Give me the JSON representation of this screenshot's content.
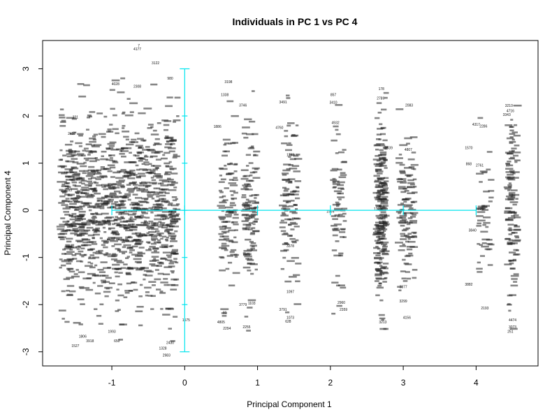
{
  "chart_data": {
    "type": "scatter",
    "title": "Individuals in PC 1 vs PC 4",
    "xlabel": "Principal Component 1",
    "ylabel": "Principal Component 4",
    "xlim": [
      -1.95,
      4.85
    ],
    "ylim": [
      -3.3,
      3.6
    ],
    "x_ticks": [
      -1,
      0,
      1,
      2,
      3,
      4
    ],
    "y_ticks": [
      -3,
      -2,
      -1,
      0,
      1,
      2,
      3
    ],
    "point_color": "#222222",
    "reference_color": "#00e5ee",
    "grid": false,
    "legend": "none",
    "reference_lines": {
      "horizontal": {
        "y": 0,
        "x_from": -1,
        "x_to": 4,
        "x_ticks": [
          -1,
          0,
          1,
          2,
          3,
          4
        ]
      },
      "vertical": {
        "x": 0,
        "y_from": -3,
        "y_to": 3,
        "y_ticks": [
          -3,
          -2,
          -1,
          0,
          1,
          2,
          3
        ]
      }
    },
    "clusters": [
      {
        "x_center": -0.9,
        "x_spread": 0.85,
        "y_spread": 1.0,
        "count": 1200
      },
      {
        "x_center": 0.6,
        "x_spread": 0.11,
        "y_spread": 0.85,
        "count": 110
      },
      {
        "x_center": 0.9,
        "x_spread": 0.09,
        "y_spread": 0.85,
        "count": 120
      },
      {
        "x_center": 1.45,
        "x_spread": 0.11,
        "y_spread": 0.85,
        "count": 110
      },
      {
        "x_center": 2.12,
        "x_spread": 0.08,
        "y_spread": 0.85,
        "count": 70
      },
      {
        "x_center": 2.7,
        "x_spread": 0.07,
        "y_spread": 0.95,
        "count": 240
      },
      {
        "x_center": 3.05,
        "x_spread": 0.11,
        "y_spread": 0.85,
        "count": 120
      },
      {
        "x_center": 4.12,
        "x_spread": 0.09,
        "y_spread": 0.85,
        "count": 45
      },
      {
        "x_center": 4.5,
        "x_spread": 0.07,
        "y_spread": 0.95,
        "count": 130
      }
    ],
    "labeled_points": [
      {
        "x": -0.65,
        "y": 3.39,
        "label": "4177"
      },
      {
        "x": -0.63,
        "y": 3.47,
        "label": "7"
      },
      {
        "x": -0.4,
        "y": 3.1,
        "label": "3122"
      },
      {
        "x": -0.2,
        "y": 2.77,
        "label": "980"
      },
      {
        "x": 0.6,
        "y": 2.7,
        "label": "3198"
      },
      {
        "x": 0.55,
        "y": 2.42,
        "label": "1338"
      },
      {
        "x": 0.8,
        "y": 2.2,
        "label": "3746"
      },
      {
        "x": 1.35,
        "y": 2.27,
        "label": "3491"
      },
      {
        "x": 2.04,
        "y": 2.42,
        "label": "857"
      },
      {
        "x": 2.04,
        "y": 2.26,
        "label": "3410"
      },
      {
        "x": 2.7,
        "y": 2.55,
        "label": "178"
      },
      {
        "x": 2.69,
        "y": 2.35,
        "label": "2789"
      },
      {
        "x": 3.08,
        "y": 2.2,
        "label": "2083"
      },
      {
        "x": 4.45,
        "y": 2.19,
        "label": "3210"
      },
      {
        "x": 4.47,
        "y": 2.08,
        "label": "4716"
      },
      {
        "x": 4.42,
        "y": 2.0,
        "label": "3343"
      },
      {
        "x": 4.0,
        "y": 1.79,
        "label": "4317"
      },
      {
        "x": 4.1,
        "y": 1.76,
        "label": "2286"
      },
      {
        "x": 3.9,
        "y": 1.3,
        "label": "1570"
      },
      {
        "x": 3.9,
        "y": 0.96,
        "label": "868"
      },
      {
        "x": 4.05,
        "y": 0.93,
        "label": "2761"
      },
      {
        "x": 4.05,
        "y": 0.0,
        "label": "4625"
      },
      {
        "x": 3.95,
        "y": -0.45,
        "label": "3840"
      },
      {
        "x": 3.9,
        "y": -1.6,
        "label": "3882"
      },
      {
        "x": 4.12,
        "y": -2.1,
        "label": "2193"
      },
      {
        "x": 4.5,
        "y": -2.35,
        "label": "4474"
      },
      {
        "x": 4.5,
        "y": -2.5,
        "label": "3073"
      },
      {
        "x": 4.47,
        "y": -2.6,
        "label": "251"
      },
      {
        "x": 1.45,
        "y": -1.75,
        "label": "1097"
      },
      {
        "x": 1.35,
        "y": -2.13,
        "label": "3791"
      },
      {
        "x": 1.45,
        "y": -2.3,
        "label": "1073"
      },
      {
        "x": 1.42,
        "y": -2.38,
        "label": "628"
      },
      {
        "x": 2.15,
        "y": -1.98,
        "label": "2960"
      },
      {
        "x": 2.18,
        "y": -2.13,
        "label": "2359"
      },
      {
        "x": 0.55,
        "y": -2.2,
        "label": "80"
      },
      {
        "x": 0.5,
        "y": -2.4,
        "label": "4805"
      },
      {
        "x": 0.58,
        "y": -2.53,
        "label": "2294"
      },
      {
        "x": 0.85,
        "y": -2.5,
        "label": "2255"
      },
      {
        "x": 0.8,
        "y": -2.03,
        "label": "3779"
      },
      {
        "x": 0.92,
        "y": -2.0,
        "label": "1103"
      },
      {
        "x": 2.72,
        "y": -2.4,
        "label": "3213"
      },
      {
        "x": 3.05,
        "y": -2.3,
        "label": "4156"
      },
      {
        "x": 3.0,
        "y": -1.95,
        "label": "3299"
      },
      {
        "x": 3.0,
        "y": -1.65,
        "label": "3377"
      },
      {
        "x": -1.5,
        "y": -2.9,
        "label": "1527"
      },
      {
        "x": -1.3,
        "y": -2.8,
        "label": "3918"
      },
      {
        "x": -0.93,
        "y": -2.8,
        "label": "650"
      },
      {
        "x": -0.2,
        "y": -2.83,
        "label": "2430"
      },
      {
        "x": -0.3,
        "y": -2.95,
        "label": "1328"
      },
      {
        "x": -0.25,
        "y": -3.1,
        "label": "2983"
      },
      {
        "x": -1.4,
        "y": -2.7,
        "label": "1806"
      },
      {
        "x": -1.0,
        "y": -2.6,
        "label": "1993"
      },
      {
        "x": 0.45,
        "y": 1.75,
        "label": "1886"
      },
      {
        "x": 1.3,
        "y": 1.73,
        "label": "4760"
      },
      {
        "x": 2.07,
        "y": 1.83,
        "label": "4932"
      },
      {
        "x": 1.45,
        "y": 1.15,
        "label": "1793"
      },
      {
        "x": 2.8,
        "y": 1.3,
        "label": "2539"
      },
      {
        "x": 3.07,
        "y": 1.26,
        "label": "4807"
      },
      {
        "x": 2.65,
        "y": 0.0,
        "label": "1379"
      },
      {
        "x": 2.0,
        "y": -0.05,
        "label": "1964"
      },
      {
        "x": 1.45,
        "y": -0.78,
        "label": "3378"
      },
      {
        "x": -1.6,
        "y": 0.4,
        "label": "2283"
      },
      {
        "x": -1.5,
        "y": 1.95,
        "label": "331"
      },
      {
        "x": -1.55,
        "y": 1.6,
        "label": "2452"
      },
      {
        "x": -0.65,
        "y": 2.6,
        "label": "2308"
      },
      {
        "x": -0.95,
        "y": 2.65,
        "label": "4028"
      },
      {
        "x": 0.02,
        "y": -2.35,
        "label": "1575"
      }
    ]
  }
}
